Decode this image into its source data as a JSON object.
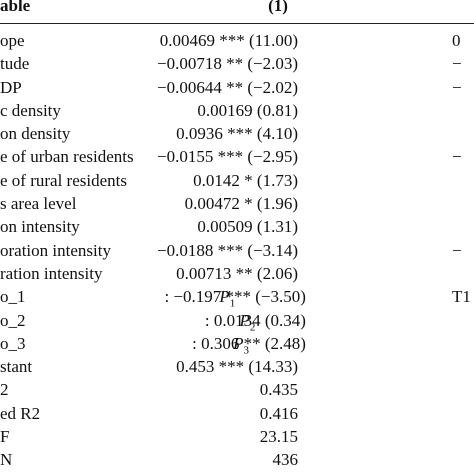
{
  "table": {
    "header": {
      "variable": "able",
      "column": "(1)"
    },
    "rows": [
      {
        "label": "ope",
        "value": "0.00469 *** (11.00)",
        "right": "0"
      },
      {
        "label": "tude",
        "value": "−0.00718 ** (−2.03)",
        "right": "−"
      },
      {
        "label": "DP",
        "value": "−0.00644 ** (−2.02)",
        "right": "−"
      },
      {
        "label": "c density",
        "value": "0.00169 (0.81)",
        "right": ""
      },
      {
        "label": "on density",
        "value": "0.0936 *** (4.10)",
        "right": ""
      },
      {
        "label": "e of urban residents",
        "value": "−0.0155 *** (−2.95)",
        "right": "−"
      },
      {
        "label": "e of rural residents",
        "value": "0.0142 * (1.73)",
        "right": ""
      },
      {
        "label": "s area level",
        "value": "0.00472 * (1.96)",
        "right": ""
      },
      {
        "label": "on intensity",
        "value": "0.00509 (1.31)",
        "right": ""
      },
      {
        "label": "oration intensity",
        "value": "−0.0188 *** (−3.14)",
        "right": "−"
      },
      {
        "label": "ration intensity",
        "value": "0.00713 ** (2.06)",
        "right": ""
      },
      {
        "label": "o_1",
        "value_prefix": "P",
        "value_sub": "1",
        "value": ": −0.197 *** (−3.50)",
        "right": "T1"
      },
      {
        "label": "o_2",
        "value_prefix": "P",
        "value_sub": "2",
        "value": ": 0.0134 (0.34)",
        "right": ""
      },
      {
        "label": "o_3",
        "value_prefix": "P",
        "value_sub": "3",
        "value": ": 0.306 ** (2.48)",
        "right": ""
      },
      {
        "label": "stant",
        "value": "0.453 *** (14.33)",
        "right": ""
      },
      {
        "label": "2",
        "value": "0.435",
        "right": ""
      },
      {
        "label": "ed R2",
        "value": "0.416",
        "right": ""
      },
      {
        "label": "F",
        "value": "23.15",
        "right": ""
      },
      {
        "label": "N",
        "value": "436",
        "right": ""
      }
    ]
  }
}
